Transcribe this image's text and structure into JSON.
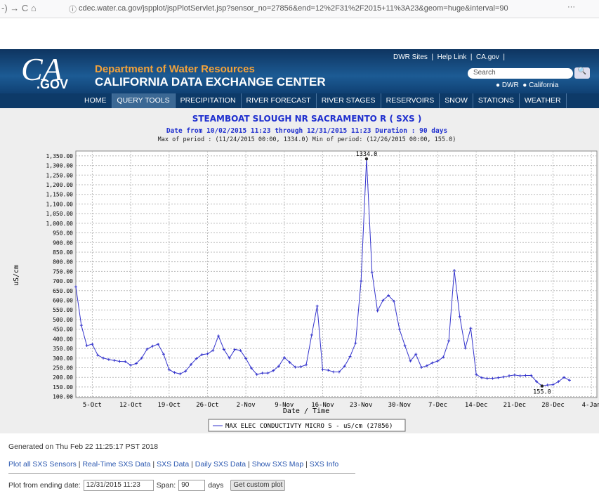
{
  "browser": {
    "url": "cdec.water.ca.gov/jspplot/jspPlotServlet.jsp?sensor_no=27856&end=12%2F31%2F2015+11%3A23&geom=huge&interval=90",
    "menu": "···"
  },
  "header": {
    "logo": "CA",
    "logo_sub": ".GOV",
    "org": "Department of Water Resources",
    "title": "CALIFORNIA DATA EXCHANGE CENTER",
    "top_links": [
      "DWR Sites",
      "Help Link",
      "CA.gov"
    ],
    "search": "Search",
    "radio": [
      "DWR",
      "California"
    ]
  },
  "nav": [
    "HOME",
    "QUERY TOOLS",
    "PRECIPITATION",
    "RIVER FORECAST",
    "RIVER STAGES",
    "RESERVOIRS",
    "SNOW",
    "STATIONS",
    "WEATHER"
  ],
  "chart_data": {
    "type": "line",
    "title": "STEAMBOAT SLOUGH NR SACRAMENTO R ( SXS )",
    "subtitle": "Date from 10/02/2015 11:23 through 12/31/2015 11:23 Duration : 90 days",
    "note": "Max of period : (11/24/2015 00:00, 1334.0)  Min of period: (12/26/2015 00:00, 155.0)",
    "xlabel": "Date / Time",
    "ylabel": "uS/cm",
    "grid": true,
    "x": [
      "2015-10-02",
      "2015-10-03",
      "2015-10-04",
      "2015-10-05",
      "2015-10-06",
      "2015-10-07",
      "2015-10-08",
      "2015-10-09",
      "2015-10-10",
      "2015-10-11",
      "2015-10-12",
      "2015-10-13",
      "2015-10-14",
      "2015-10-15",
      "2015-10-16",
      "2015-10-17",
      "2015-10-18",
      "2015-10-19",
      "2015-10-20",
      "2015-10-21",
      "2015-10-22",
      "2015-10-23",
      "2015-10-24",
      "2015-10-25",
      "2015-10-26",
      "2015-10-27",
      "2015-10-28",
      "2015-10-29",
      "2015-10-30",
      "2015-10-31",
      "2015-11-01",
      "2015-11-02",
      "2015-11-03",
      "2015-11-04",
      "2015-11-05",
      "2015-11-06",
      "2015-11-07",
      "2015-11-08",
      "2015-11-09",
      "2015-11-10",
      "2015-11-11",
      "2015-11-12",
      "2015-11-13",
      "2015-11-14",
      "2015-11-15",
      "2015-11-16",
      "2015-11-17",
      "2015-11-18",
      "2015-11-19",
      "2015-11-20",
      "2015-11-21",
      "2015-11-22",
      "2015-11-23",
      "2015-11-24",
      "2015-11-25",
      "2015-11-26",
      "2015-11-27",
      "2015-11-28",
      "2015-11-29",
      "2015-11-30",
      "2015-12-01",
      "2015-12-02",
      "2015-12-03",
      "2015-12-04",
      "2015-12-05",
      "2015-12-06",
      "2015-12-07",
      "2015-12-08",
      "2015-12-09",
      "2015-12-10",
      "2015-12-11",
      "2015-12-12",
      "2015-12-13",
      "2015-12-14",
      "2015-12-15",
      "2015-12-16",
      "2015-12-17",
      "2015-12-18",
      "2015-12-19",
      "2015-12-20",
      "2015-12-21",
      "2015-12-22",
      "2015-12-23",
      "2015-12-24",
      "2015-12-25",
      "2015-12-26",
      "2015-12-27",
      "2015-12-28",
      "2015-12-29",
      "2015-12-30",
      "2015-12-31"
    ],
    "series": [
      {
        "name": "MAX ELEC CONDUCTIVTY MICRO S - uS/cm (27856)",
        "color": "#3333cc",
        "values": [
          670,
          470,
          365,
          372,
          315,
          300,
          293,
          288,
          283,
          282,
          263,
          272,
          300,
          347,
          362,
          372,
          320,
          240,
          225,
          218,
          232,
          267,
          298,
          318,
          322,
          340,
          415,
          345,
          300,
          345,
          340,
          298,
          248,
          215,
          222,
          222,
          235,
          258,
          303,
          278,
          253,
          255,
          265,
          420,
          570,
          240,
          237,
          228,
          228,
          258,
          308,
          378,
          700,
          1334,
          745,
          545,
          600,
          625,
          595,
          450,
          365,
          285,
          320,
          252,
          260,
          275,
          285,
          305,
          390,
          755,
          515,
          352,
          455,
          215,
          198,
          195,
          195,
          198,
          202,
          208,
          212,
          208,
          210,
          210,
          178,
          155,
          160,
          162,
          178,
          200,
          185
        ]
      }
    ],
    "annotations": [
      {
        "x": "2015-11-24",
        "value": 1334,
        "label": "1334.0"
      },
      {
        "x": "2015-12-26",
        "value": 155,
        "label": "155.0"
      }
    ],
    "xlim": [
      "2015-10-02",
      "2016-01-05"
    ],
    "xticks": [
      {
        "value": "2015-10-05",
        "label": "5-Oct"
      },
      {
        "value": "2015-10-12",
        "label": "12-Oct"
      },
      {
        "value": "2015-10-19",
        "label": "19-Oct"
      },
      {
        "value": "2015-10-26",
        "label": "26-Oct"
      },
      {
        "value": "2015-11-02",
        "label": "2-Nov"
      },
      {
        "value": "2015-11-09",
        "label": "9-Nov"
      },
      {
        "value": "2015-11-16",
        "label": "16-Nov"
      },
      {
        "value": "2015-11-23",
        "label": "23-Nov"
      },
      {
        "value": "2015-11-30",
        "label": "30-Nov"
      },
      {
        "value": "2015-12-07",
        "label": "7-Dec"
      },
      {
        "value": "2015-12-14",
        "label": "14-Dec"
      },
      {
        "value": "2015-12-21",
        "label": "21-Dec"
      },
      {
        "value": "2015-12-28",
        "label": "28-Dec"
      },
      {
        "value": "2016-01-04",
        "label": "4-Jan"
      }
    ],
    "ylim": [
      95,
      1375
    ],
    "yticks": [
      {
        "value": 100,
        "label": "100.00"
      },
      {
        "value": 150,
        "label": "150.00"
      },
      {
        "value": 200,
        "label": "200.00"
      },
      {
        "value": 250,
        "label": "250.00"
      },
      {
        "value": 300,
        "label": "300.00"
      },
      {
        "value": 350,
        "label": "350.00"
      },
      {
        "value": 400,
        "label": "400.00"
      },
      {
        "value": 450,
        "label": "450.00"
      },
      {
        "value": 500,
        "label": "500.00"
      },
      {
        "value": 550,
        "label": "550.00"
      },
      {
        "value": 600,
        "label": "600.00"
      },
      {
        "value": 650,
        "label": "650.00"
      },
      {
        "value": 700,
        "label": "700.00"
      },
      {
        "value": 750,
        "label": "750.00"
      },
      {
        "value": 800,
        "label": "800.00"
      },
      {
        "value": 850,
        "label": "850.00"
      },
      {
        "value": 900,
        "label": "900.00"
      },
      {
        "value": 950,
        "label": "950.00"
      },
      {
        "value": 1000,
        "label": "1,000.00"
      },
      {
        "value": 1050,
        "label": "1,050.00"
      },
      {
        "value": 1100,
        "label": "1,100.00"
      },
      {
        "value": 1150,
        "label": "1,150.00"
      },
      {
        "value": 1200,
        "label": "1,200.00"
      },
      {
        "value": 1250,
        "label": "1,250.00"
      },
      {
        "value": 1300,
        "label": "1,300.00"
      },
      {
        "value": 1350,
        "label": "1,350.00"
      }
    ]
  },
  "footer": {
    "generated": "Generated on Thu Feb 22 11:25:17 PST 2018",
    "links": [
      "Plot all SXS Sensors",
      "Real-Time SXS Data",
      "SXS Data",
      "Daily SXS Data",
      "Show SXS Map",
      "SXS Info"
    ],
    "form": {
      "date_label": "Plot from ending date:",
      "date_value": "12/31/2015 11:23",
      "span_label": "Span:",
      "span_value": "90",
      "days": "days",
      "button": "Get custom plot"
    }
  }
}
